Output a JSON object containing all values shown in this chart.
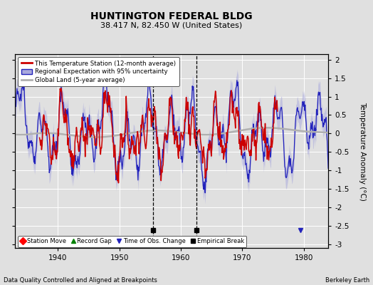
{
  "title": "HUNTINGTON FEDERAL BLDG",
  "subtitle": "38.417 N, 82.450 W (United States)",
  "ylabel": "Temperature Anomaly (°C)",
  "footer_left": "Data Quality Controlled and Aligned at Breakpoints",
  "footer_right": "Berkeley Earth",
  "xlim": [
    1933,
    1984
  ],
  "ylim": [
    -3.1,
    2.15
  ],
  "yticks": [
    -3,
    -2.5,
    -2,
    -1.5,
    -1,
    -0.5,
    0,
    0.5,
    1,
    1.5,
    2
  ],
  "xticks": [
    1940,
    1950,
    1960,
    1970,
    1980
  ],
  "background_color": "#e0e0e0",
  "plot_bg_color": "#e0e0e0",
  "empirical_breaks": [
    1955.5,
    1962.5
  ],
  "time_obs_changes": [
    1979.5
  ],
  "legend_labels": [
    "This Temperature Station (12-month average)",
    "Regional Expectation with 95% uncertainty",
    "Global Land (5-year average)"
  ],
  "station_color": "#cc0000",
  "regional_color": "#2222bb",
  "regional_fill_color": "#aaaadd",
  "global_color": "#b0b0b0",
  "grid_color": "#ffffff"
}
